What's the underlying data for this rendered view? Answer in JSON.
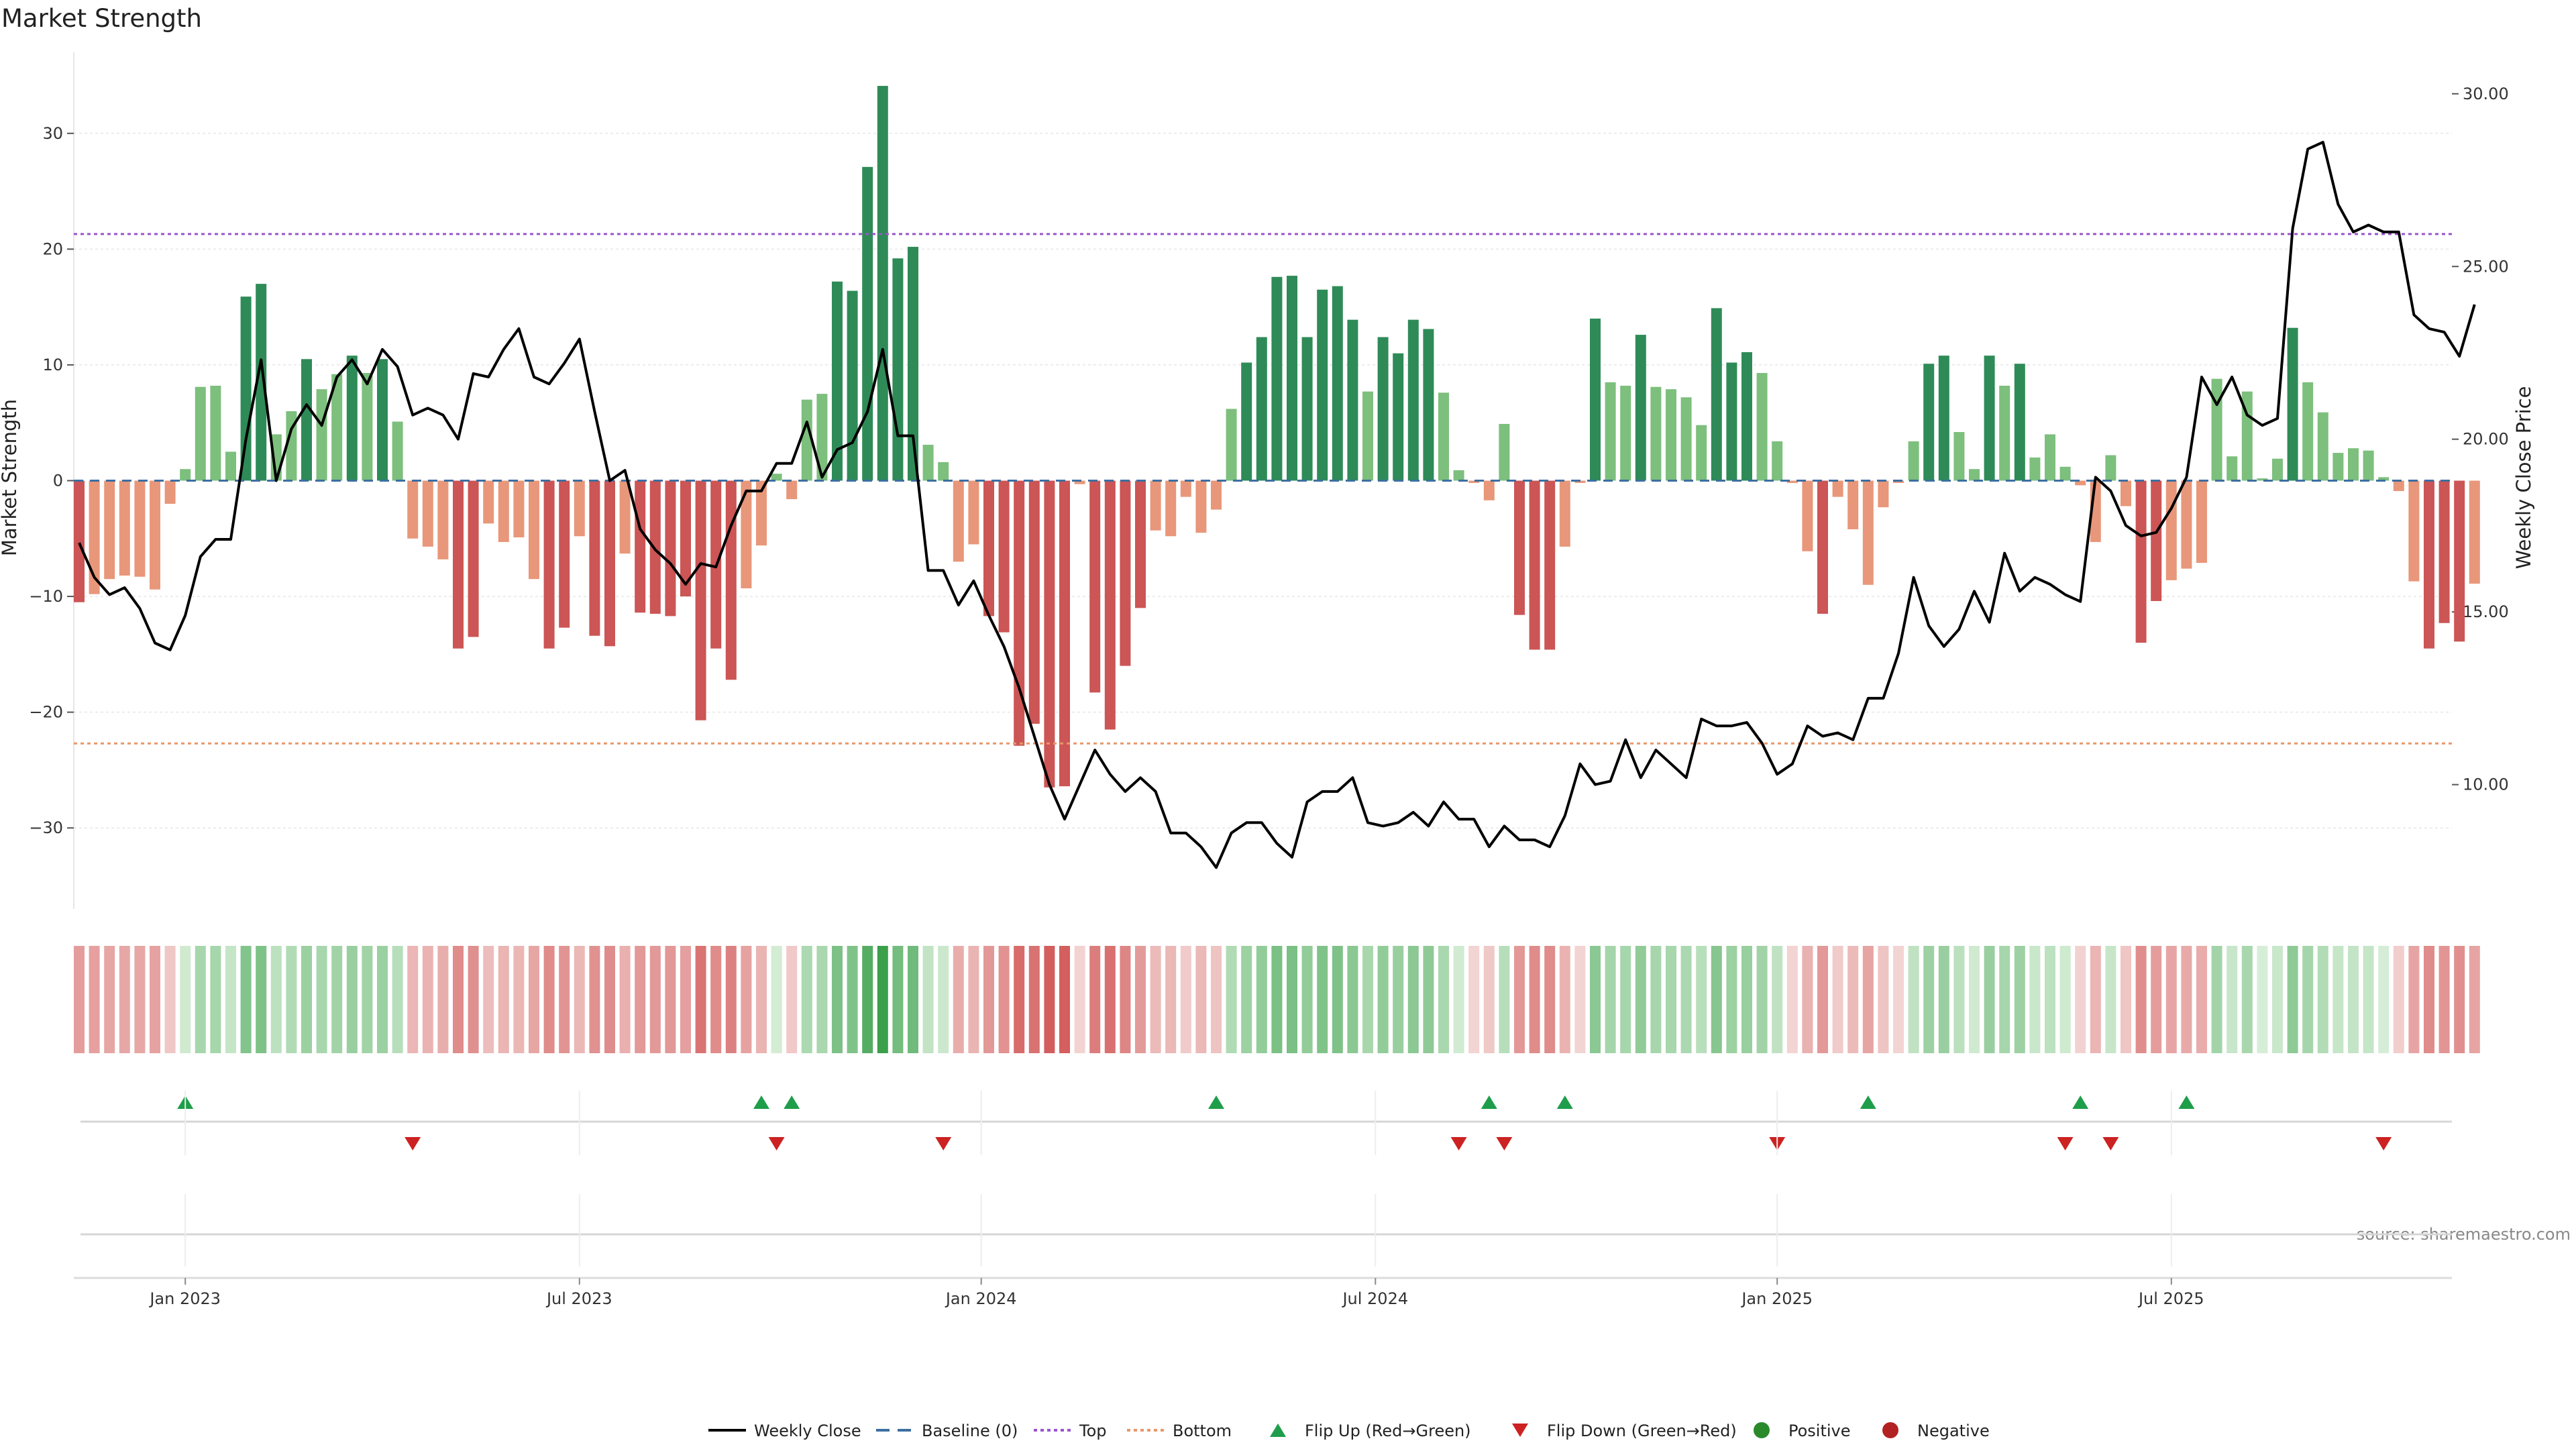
{
  "chart_data": {
    "type": "bar",
    "title": "Market Strength",
    "ylabel_left": "Market Strength",
    "ylabel_right": "Weekly Close Price",
    "source": "source: sharemaestro.com",
    "y_left": {
      "min": -37,
      "max": 37,
      "ticks": [
        30,
        20,
        10,
        0,
        -10,
        -20,
        -30
      ],
      "tick_labels": [
        "30",
        "20",
        "10",
        "0",
        "−10",
        "−20",
        "−30"
      ]
    },
    "y_right": {
      "min": 6.4,
      "max": 31.2,
      "ticks": [
        30,
        25,
        20,
        15,
        10
      ],
      "tick_labels": [
        "30.00",
        "25.00",
        "20.00",
        "15.00",
        "10.00"
      ]
    },
    "x_ticks": [
      {
        "label": "Jan 2023",
        "week": 7
      },
      {
        "label": "Jul 2023",
        "week": 33
      },
      {
        "label": "Jan 2024",
        "week": 59.5
      },
      {
        "label": "Jul 2024",
        "week": 85.5
      },
      {
        "label": "Jan 2025",
        "week": 112
      },
      {
        "label": "Jul 2025",
        "week": 138
      }
    ],
    "top_level": 21.3,
    "bottom_level": -22.7,
    "colors": {
      "strong_green": "#2e8b57",
      "light_green": "#7dbf7d",
      "strong_red": "#cc5555",
      "light_red": "#e8977a",
      "line": "#000000",
      "top": "#9955cc",
      "bottom": "#e8976a",
      "baseline": "#3d6fa0",
      "flip_up": "#1e9e4a",
      "flip_down": "#cc2222",
      "positive": "#2a8a2a",
      "negative": "#b22222"
    },
    "strength": [
      -10.5,
      -9.8,
      -8.5,
      -8.2,
      -8.3,
      -9.4,
      -2.0,
      1.0,
      8.1,
      8.2,
      2.5,
      15.9,
      17.0,
      4.0,
      6.0,
      10.5,
      7.9,
      9.2,
      10.8,
      9.3,
      10.5,
      5.1,
      -5.0,
      -5.7,
      -6.8,
      -14.5,
      -13.5,
      -3.7,
      -5.3,
      -4.9,
      -8.5,
      -14.5,
      -12.7,
      -4.8,
      -13.4,
      -14.3,
      -6.3,
      -11.4,
      -11.5,
      -11.7,
      -10.0,
      -20.7,
      -14.5,
      -17.2,
      -9.3,
      -5.6,
      0.6,
      -1.6,
      7.0,
      7.5,
      17.2,
      16.4,
      27.1,
      34.1,
      19.2,
      20.2,
      3.1,
      1.6,
      -7.0,
      -5.5,
      -11.7,
      -13.1,
      -22.9,
      -21.0,
      -26.5,
      -26.4,
      -0.3,
      -18.3,
      -21.5,
      -16.0,
      -11.0,
      -4.3,
      -4.8,
      -1.4,
      -4.5,
      -2.5,
      6.2,
      10.2,
      12.4,
      17.6,
      17.7,
      12.4,
      16.5,
      16.8,
      13.9,
      7.7,
      12.4,
      11.0,
      13.9,
      13.1,
      7.6,
      0.9,
      -0.2,
      -1.7,
      4.9,
      -11.6,
      -14.6,
      -14.6,
      -5.7,
      -0.2,
      14.0,
      8.5,
      8.2,
      12.6,
      8.1,
      7.9,
      7.2,
      4.8,
      14.9,
      10.2,
      11.1,
      9.3,
      3.4,
      -0.2,
      -6.1,
      -11.5,
      -1.4,
      -4.2,
      -9.0,
      -2.3,
      -0.2,
      3.4,
      10.1,
      10.8,
      4.2,
      1.0,
      10.8,
      8.2,
      10.1,
      2.0,
      4.0,
      1.2,
      -0.4,
      -5.3,
      2.2,
      -2.2,
      -14.0,
      -10.4,
      -8.6,
      -7.6,
      -7.1,
      8.8,
      2.1,
      7.7,
      0.2,
      1.9,
      13.2,
      8.5,
      5.9,
      2.4,
      2.8,
      2.6,
      0.3,
      -0.9,
      -8.7,
      -14.5,
      -12.3,
      -13.9,
      -8.9
    ],
    "price": [
      17.0,
      16.0,
      15.5,
      15.7,
      15.1,
      14.1,
      13.9,
      14.9,
      16.6,
      17.1,
      17.1,
      20.0,
      22.3,
      18.8,
      20.3,
      21.0,
      20.4,
      21.8,
      22.3,
      21.6,
      22.6,
      22.1,
      20.7,
      20.9,
      20.7,
      20.0,
      21.9,
      21.8,
      22.6,
      23.2,
      21.8,
      21.6,
      22.2,
      22.9,
      20.8,
      18.8,
      19.1,
      17.4,
      16.8,
      16.4,
      15.8,
      16.4,
      16.3,
      17.5,
      18.5,
      18.5,
      19.3,
      19.3,
      20.5,
      18.9,
      19.7,
      19.9,
      20.8,
      22.6,
      20.1,
      20.1,
      16.2,
      16.2,
      15.2,
      15.9,
      14.9,
      14.0,
      12.8,
      11.4,
      10.0,
      9.0,
      10.0,
      11.0,
      10.3,
      9.8,
      10.2,
      9.8,
      8.6,
      8.6,
      8.2,
      7.6,
      8.6,
      8.9,
      8.9,
      8.3,
      7.9,
      9.5,
      9.8,
      9.8,
      10.2,
      8.9,
      8.8,
      8.9,
      9.2,
      8.8,
      9.5,
      9.0,
      9.0,
      8.2,
      8.8,
      8.4,
      8.4,
      8.2,
      9.1,
      10.6,
      10.0,
      10.1,
      11.3,
      10.2,
      11.0,
      10.6,
      10.2,
      11.9,
      11.7,
      11.7,
      11.8,
      11.2,
      10.3,
      10.6,
      11.7,
      11.4,
      11.5,
      11.3,
      12.5,
      12.5,
      13.8,
      16.0,
      14.6,
      14.0,
      14.5,
      15.6,
      14.7,
      16.7,
      15.6,
      16.0,
      15.8,
      15.5,
      15.3,
      18.9,
      18.5,
      17.5,
      17.2,
      17.3,
      18.0,
      18.9,
      21.8,
      21.0,
      21.8,
      20.7,
      20.4,
      20.6,
      26.1,
      28.4,
      28.6,
      26.8,
      26.0,
      26.2,
      26.0,
      26.0,
      23.6,
      23.2,
      23.1,
      22.4,
      23.9
    ],
    "flip_up_weeks": [
      7,
      45,
      47,
      75,
      93,
      98,
      118,
      132,
      139
    ],
    "flip_down_weeks": [
      22,
      46,
      57,
      91,
      94,
      112,
      131,
      134,
      152
    ],
    "legend": [
      {
        "label": "Weekly Close",
        "kind": "line"
      },
      {
        "label": "Baseline (0)",
        "kind": "dash"
      },
      {
        "label": "Top",
        "kind": "dot-purple"
      },
      {
        "label": "Bottom",
        "kind": "dot-orange"
      },
      {
        "label": "Flip Up (Red→Green)",
        "kind": "tri-up"
      },
      {
        "label": "Flip Down (Green→Red)",
        "kind": "tri-down"
      },
      {
        "label": "Positive",
        "kind": "dot-green"
      },
      {
        "label": "Negative",
        "kind": "dot-red"
      }
    ]
  }
}
